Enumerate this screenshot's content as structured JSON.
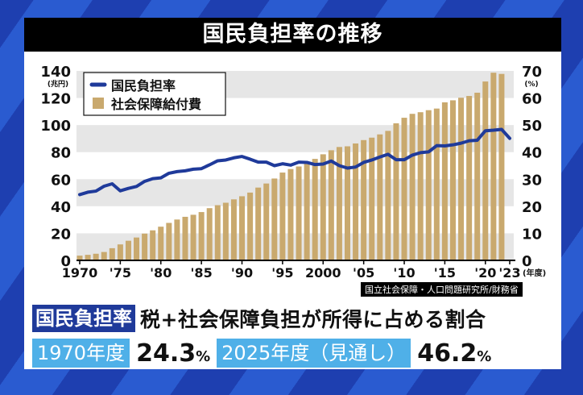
{
  "title": "国民負担率の推移",
  "source": "国立社会保障・人口問題研究所/財務省",
  "chart_data": {
    "type": "bar+line",
    "legend": [
      "国民負担率",
      "社会保障給付費"
    ],
    "legend_position": "top-left",
    "left_axis": {
      "unit": "(兆円)",
      "range": [
        0,
        140
      ],
      "ticks": [
        "0",
        "20",
        "40",
        "60",
        "80",
        "100",
        "120",
        "140"
      ]
    },
    "right_axis": {
      "unit": "(%)",
      "range": [
        0,
        70
      ],
      "ticks": [
        "0",
        "10",
        "20",
        "30",
        "40",
        "50",
        "60",
        "70"
      ]
    },
    "x_axis": {
      "unit": "(年度)",
      "tick_labels": [
        "1970",
        "'75",
        "'80",
        "'85",
        "'90",
        "'95",
        "2000",
        "'05",
        "'10",
        "'15",
        "'20",
        "'23"
      ]
    },
    "grid": "alternating horizontal bands",
    "colors": {
      "line": "#1f3a9a",
      "bars": "#c9a96e",
      "band": "#e6e6e6"
    },
    "series": [
      {
        "name": "社会保障給付費",
        "axis": "left",
        "type": "bar",
        "x_start": 1970,
        "values": [
          3.5,
          4.1,
          4.9,
          6.2,
          9.0,
          11.8,
          14.5,
          16.9,
          19.8,
          22.2,
          24.9,
          27.7,
          30.2,
          32.2,
          33.7,
          35.7,
          38.6,
          40.8,
          42.6,
          45.1,
          47.4,
          50.1,
          53.8,
          56.8,
          60.5,
          64.9,
          67.5,
          69.4,
          72.1,
          75.0,
          78.4,
          81.4,
          83.8,
          84.3,
          86.4,
          88.9,
          90.7,
          93.1,
          95.7,
          101.3,
          105.4,
          108.3,
          109.5,
          111.0,
          112.2,
          116.8,
          118.3,
          120.2,
          121.5,
          123.9,
          132.2,
          138.7,
          137.8
        ]
      },
      {
        "name": "国民負担率",
        "axis": "right",
        "type": "line",
        "x_start": 1970,
        "values": [
          24.3,
          25.2,
          25.6,
          27.4,
          28.3,
          25.7,
          26.6,
          27.3,
          29.2,
          30.2,
          30.5,
          32.2,
          32.8,
          33.1,
          33.7,
          33.9,
          35.3,
          36.8,
          37.1,
          37.9,
          38.4,
          37.4,
          36.3,
          36.3,
          35.0,
          35.7,
          35.2,
          36.3,
          36.2,
          35.4,
          35.6,
          36.7,
          35.0,
          34.1,
          34.5,
          36.2,
          37.1,
          38.2,
          39.2,
          37.2,
          37.2,
          38.9,
          39.8,
          40.1,
          42.4,
          42.3,
          42.7,
          43.3,
          44.2,
          44.4,
          47.9,
          48.1,
          48.4,
          45.1
        ]
      }
    ]
  },
  "caption": {
    "term": "国民負担率",
    "definition": "税+社会保障負担が所得に占める割合",
    "items": [
      {
        "label": "1970年度",
        "value": "24.3",
        "unit": "%"
      },
      {
        "label": "2025年度（見通し）",
        "value": "46.2",
        "unit": "%"
      }
    ]
  }
}
